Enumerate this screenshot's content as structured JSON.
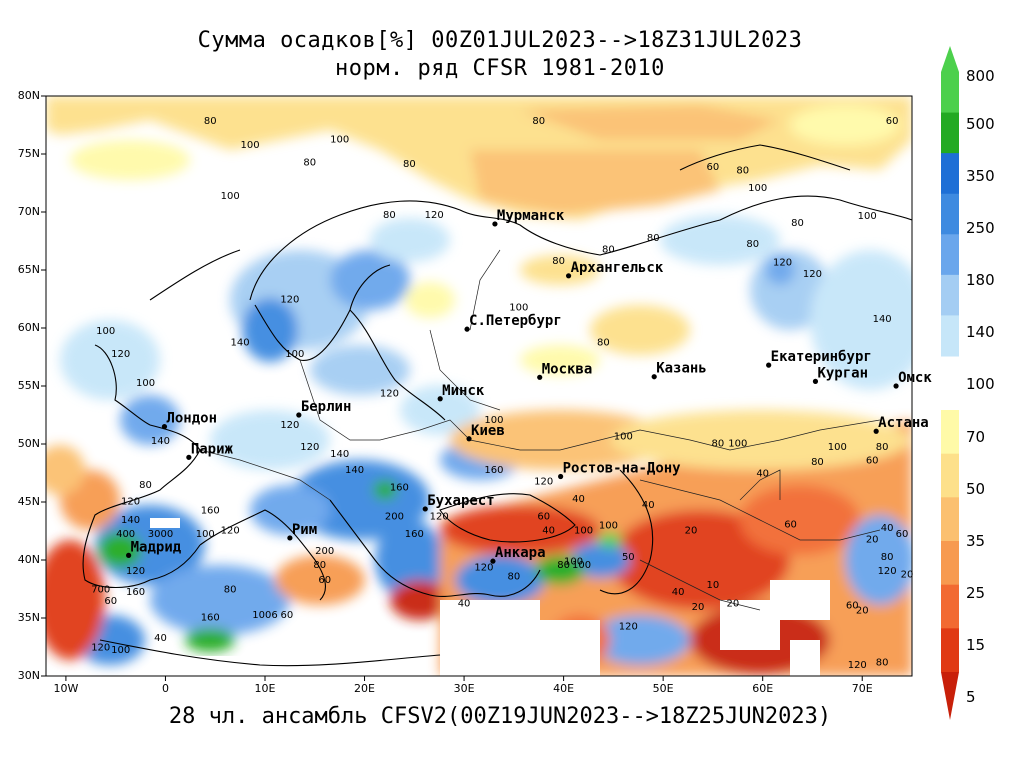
{
  "title_line1": "Сумма осадков[%] 00Z01JUL2023-->18Z31JUL2023",
  "title_line2": "норм. ряд CFSR 1981-2010",
  "footer": "28 чл. ансамбль CFSV2(00Z19JUN2023-->18Z25JUN2023)",
  "lat_labels": [
    "80N",
    "75N",
    "70N",
    "65N",
    "60N",
    "55N",
    "50N",
    "45N",
    "40N",
    "35N",
    "30N"
  ],
  "lon_labels": [
    "10W",
    "0",
    "10E",
    "20E",
    "30E",
    "40E",
    "50E",
    "60E",
    "70E"
  ],
  "colorbar": {
    "upper_labels": [
      "800",
      "500",
      "350",
      "250",
      "180",
      "140",
      "100"
    ],
    "lower_labels": [
      "70",
      "50",
      "35",
      "25",
      "15",
      "5"
    ],
    "upper_colors": [
      "#4cd04c",
      "#4cd04c",
      "#22aa22",
      "#1e6fd6",
      "#3e8ae0",
      "#6aa6ec",
      "#a4cdf3",
      "#c6e6f9"
    ],
    "lower_colors": [
      "#fffaa8",
      "#fde08a",
      "#fbc070",
      "#f79a50",
      "#f26a32",
      "#e03a14",
      "#c8200a"
    ]
  },
  "cities": [
    {
      "name": "Мурманск",
      "lon": 33.1,
      "lat": 68.97
    },
    {
      "name": "Архангельск",
      "lon": 40.5,
      "lat": 64.5
    },
    {
      "name": "С.Петербург",
      "lon": 30.3,
      "lat": 59.9
    },
    {
      "name": "Москва",
      "lon": 37.6,
      "lat": 55.75
    },
    {
      "name": "Казань",
      "lon": 49.1,
      "lat": 55.8
    },
    {
      "name": "Екатеринбург",
      "lon": 60.6,
      "lat": 56.8
    },
    {
      "name": "Курган",
      "lon": 65.3,
      "lat": 55.4
    },
    {
      "name": "Омск",
      "lon": 73.4,
      "lat": 55.0
    },
    {
      "name": "Астана",
      "lon": 71.4,
      "lat": 51.1
    },
    {
      "name": "Минск",
      "lon": 27.6,
      "lat": 53.9
    },
    {
      "name": "Берлин",
      "lon": 13.4,
      "lat": 52.5
    },
    {
      "name": "Лондон",
      "lon": -0.1,
      "lat": 51.5
    },
    {
      "name": "Париж",
      "lon": 2.35,
      "lat": 48.85
    },
    {
      "name": "Киев",
      "lon": 30.5,
      "lat": 50.45
    },
    {
      "name": "Ростов-на-Дону",
      "lon": 39.7,
      "lat": 47.2
    },
    {
      "name": "Бухарест",
      "lon": 26.1,
      "lat": 44.4
    },
    {
      "name": "Рим",
      "lon": 12.5,
      "lat": 41.9
    },
    {
      "name": "Мадрид",
      "lon": -3.7,
      "lat": 40.4
    },
    {
      "name": "Анкара",
      "lon": 32.9,
      "lat": 39.9
    }
  ],
  "contour_labels": [
    {
      "t": "80",
      "lon": 4.5,
      "lat": 77.6
    },
    {
      "t": "100",
      "lon": 8.5,
      "lat": 75.5
    },
    {
      "t": "100",
      "lon": 17.5,
      "lat": 76.0
    },
    {
      "t": "80",
      "lon": 14.5,
      "lat": 74.0
    },
    {
      "t": "80",
      "lon": 24.5,
      "lat": 73.9
    },
    {
      "t": "80",
      "lon": 37.5,
      "lat": 77.6
    },
    {
      "t": "100",
      "lon": 6.5,
      "lat": 71.1
    },
    {
      "t": "120",
      "lon": 27.0,
      "lat": 69.5
    },
    {
      "t": "80",
      "lon": 22.5,
      "lat": 69.5
    },
    {
      "t": "60",
      "lon": 73.0,
      "lat": 77.6
    },
    {
      "t": "60",
      "lon": 55.0,
      "lat": 73.6
    },
    {
      "t": "80",
      "lon": 58.0,
      "lat": 73.3
    },
    {
      "t": "100",
      "lon": 59.5,
      "lat": 71.8
    },
    {
      "t": "80",
      "lon": 63.5,
      "lat": 68.8
    },
    {
      "t": "100",
      "lon": 70.5,
      "lat": 69.4
    },
    {
      "t": "120",
      "lon": 62.0,
      "lat": 65.4
    },
    {
      "t": "80",
      "lon": 59.0,
      "lat": 67.0
    },
    {
      "t": "120",
      "lon": 65.0,
      "lat": 64.4
    },
    {
      "t": "80",
      "lon": 39.5,
      "lat": 65.5
    },
    {
      "t": "80",
      "lon": 44.5,
      "lat": 66.5
    },
    {
      "t": "80",
      "lon": 49.0,
      "lat": 67.5
    },
    {
      "t": "140",
      "lon": 72.0,
      "lat": 60.5
    },
    {
      "t": "80",
      "lon": 44.0,
      "lat": 58.5
    },
    {
      "t": "100",
      "lon": 35.5,
      "lat": 61.5
    },
    {
      "t": "120",
      "lon": 12.5,
      "lat": 62.2
    },
    {
      "t": "100",
      "lon": -6.0,
      "lat": 59.5
    },
    {
      "t": "120",
      "lon": -4.5,
      "lat": 57.5
    },
    {
      "t": "100",
      "lon": -2.0,
      "lat": 55.0
    },
    {
      "t": "140",
      "lon": 7.5,
      "lat": 58.5
    },
    {
      "t": "100",
      "lon": 13.0,
      "lat": 57.5
    },
    {
      "t": "120",
      "lon": 12.5,
      "lat": 51.4
    },
    {
      "t": "120",
      "lon": 22.5,
      "lat": 54.1
    },
    {
      "t": "100",
      "lon": 33.0,
      "lat": 51.8
    },
    {
      "t": "100",
      "lon": 46.0,
      "lat": 50.4
    },
    {
      "t": "80",
      "lon": 55.5,
      "lat": 49.8
    },
    {
      "t": "100",
      "lon": 57.5,
      "lat": 49.8
    },
    {
      "t": "80",
      "lon": 65.5,
      "lat": 48.2
    },
    {
      "t": "60",
      "lon": 71.0,
      "lat": 48.3
    },
    {
      "t": "80",
      "lon": 72.0,
      "lat": 49.5
    },
    {
      "t": "100",
      "lon": 67.5,
      "lat": 49.5
    },
    {
      "t": "40",
      "lon": 60.0,
      "lat": 47.2
    },
    {
      "t": "60",
      "lon": 62.8,
      "lat": 42.8
    },
    {
      "t": "120",
      "lon": 14.5,
      "lat": 49.5
    },
    {
      "t": "140",
      "lon": 17.5,
      "lat": 48.9
    },
    {
      "t": "160",
      "lon": 33.0,
      "lat": 47.5
    },
    {
      "t": "120",
      "lon": 38.0,
      "lat": 46.5
    },
    {
      "t": "160",
      "lon": 23.5,
      "lat": 46.0
    },
    {
      "t": "140",
      "lon": 19.0,
      "lat": 47.5
    },
    {
      "t": "80",
      "lon": -2.0,
      "lat": 46.2
    },
    {
      "t": "120",
      "lon": -3.5,
      "lat": 44.8
    },
    {
      "t": "140",
      "lon": -3.5,
      "lat": 43.2
    },
    {
      "t": "160",
      "lon": 4.5,
      "lat": 44.0
    },
    {
      "t": "120",
      "lon": 6.5,
      "lat": 42.3
    },
    {
      "t": "400",
      "lon": -4.0,
      "lat": 42.0
    },
    {
      "t": "3000",
      "lon": -0.5,
      "lat": 42.0
    },
    {
      "t": "100",
      "lon": 4.0,
      "lat": 42.0
    },
    {
      "t": "200",
      "lon": 16.0,
      "lat": 40.5
    },
    {
      "t": "80",
      "lon": 15.5,
      "lat": 39.3
    },
    {
      "t": "60",
      "lon": 16.0,
      "lat": 38.0
    },
    {
      "t": "200",
      "lon": 23.0,
      "lat": 43.5
    },
    {
      "t": "120",
      "lon": 27.5,
      "lat": 43.5
    },
    {
      "t": "160",
      "lon": 25.0,
      "lat": 42.0
    },
    {
      "t": "60",
      "lon": 38.0,
      "lat": 43.5
    },
    {
      "t": "40",
      "lon": 41.5,
      "lat": 45.0
    },
    {
      "t": "40",
      "lon": 38.5,
      "lat": 42.3
    },
    {
      "t": "100",
      "lon": 42.0,
      "lat": 42.3
    },
    {
      "t": "40",
      "lon": 48.5,
      "lat": 44.5
    },
    {
      "t": "100",
      "lon": 44.5,
      "lat": 42.7
    },
    {
      "t": "100",
      "lon": 41.0,
      "lat": 39.6
    },
    {
      "t": "80",
      "lon": 40.0,
      "lat": 39.3
    },
    {
      "t": "100",
      "lon": 41.8,
      "lat": 39.3
    },
    {
      "t": "50",
      "lon": 46.5,
      "lat": 40.0
    },
    {
      "t": "120",
      "lon": 32.0,
      "lat": 39.1
    },
    {
      "t": "80",
      "lon": 35.0,
      "lat": 38.3
    },
    {
      "t": "120",
      "lon": -3.0,
      "lat": 38.8
    },
    {
      "t": "160",
      "lon": -3.0,
      "lat": 37.0
    },
    {
      "t": "700",
      "lon": -6.5,
      "lat": 37.2
    },
    {
      "t": "60",
      "lon": -5.5,
      "lat": 36.2
    },
    {
      "t": "80",
      "lon": 6.5,
      "lat": 37.2
    },
    {
      "t": "160",
      "lon": 4.5,
      "lat": 34.8
    },
    {
      "t": "1006",
      "lon": 10.0,
      "lat": 35.0
    },
    {
      "t": "60",
      "lon": 12.2,
      "lat": 35.0
    },
    {
      "t": "40",
      "lon": -0.5,
      "lat": 33.0
    },
    {
      "t": "120",
      "lon": -6.5,
      "lat": 32.2
    },
    {
      "t": "100",
      "lon": -4.5,
      "lat": 32.0
    },
    {
      "t": "120",
      "lon": 46.5,
      "lat": 34.0
    },
    {
      "t": "40",
      "lon": 51.5,
      "lat": 37.0
    },
    {
      "t": "20",
      "lon": 53.5,
      "lat": 35.7
    },
    {
      "t": "20",
      "lon": 57.0,
      "lat": 36.0
    },
    {
      "t": "10",
      "lon": 55.0,
      "lat": 37.6
    },
    {
      "t": "20",
      "lon": 52.8,
      "lat": 42.3
    },
    {
      "t": "60",
      "lon": 69.0,
      "lat": 35.8
    },
    {
      "t": "20",
      "lon": 70.0,
      "lat": 35.4
    },
    {
      "t": "120",
      "lon": 69.5,
      "lat": 30.7
    },
    {
      "t": "80",
      "lon": 72.0,
      "lat": 30.9
    },
    {
      "t": "20",
      "lon": 71.0,
      "lat": 41.5
    },
    {
      "t": "40",
      "lon": 72.5,
      "lat": 42.5
    },
    {
      "t": "60",
      "lon": 74.0,
      "lat": 42.0
    },
    {
      "t": "120",
      "lon": 72.5,
      "lat": 38.8
    },
    {
      "t": "80",
      "lon": 72.5,
      "lat": 40.0
    },
    {
      "t": "20",
      "lon": 74.5,
      "lat": 38.5
    },
    {
      "t": "140",
      "lon": -0.5,
      "lat": 50.0
    },
    {
      "t": "40",
      "lon": 30.0,
      "lat": 36.0
    }
  ]
}
